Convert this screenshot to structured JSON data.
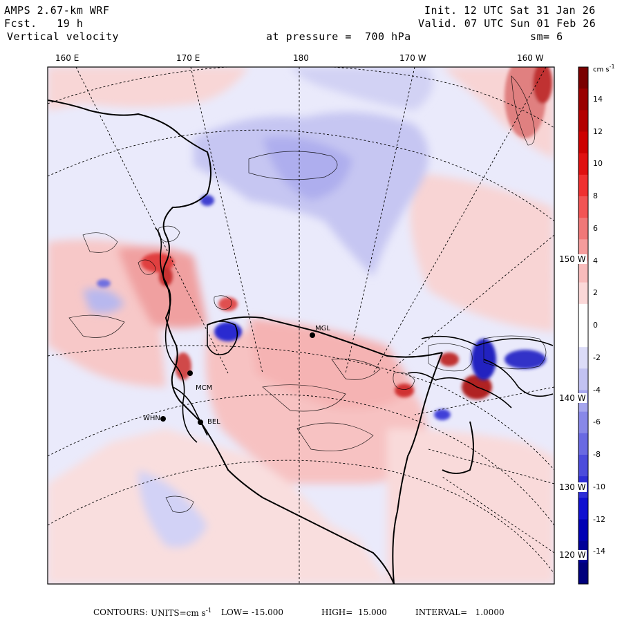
{
  "header": {
    "model": "AMPS 2.67-km WRF",
    "forecast_label": "Fcst.",
    "forecast_hours": "19 h",
    "field_name": "Vertical velocity",
    "pressure_text": "at pressure =  700 hPa",
    "init_text": "Init. 12 UTC Sat 31 Jan 26",
    "valid_text": "Valid. 07 UTC Sun 01 Feb 26",
    "smoothing_text": "sm= 6"
  },
  "longitude_labels": [
    "160 E",
    "170 E",
    "180",
    "170 W",
    "160 W"
  ],
  "latitude_labels": [
    "150 W",
    "140 W",
    "130 W",
    "120 W"
  ],
  "stations": [
    "MCM",
    "WHN",
    "BEL",
    "MGL"
  ],
  "colorbar": {
    "unit": "cm s",
    "unit_exp": "-1",
    "ticks": [
      "14",
      "12",
      "10",
      "8",
      "6",
      "4",
      "2",
      "0",
      "-2",
      "-4",
      "-6",
      "-8",
      "-10",
      "-12",
      "-14"
    ],
    "colors": [
      "#7a0000",
      "#990000",
      "#b30000",
      "#cc0000",
      "#e01010",
      "#f03030",
      "#f25454",
      "#f07878",
      "#f59c9c",
      "#f8bcbc",
      "#fbd8d8",
      "#ffffff",
      "#ffffff",
      "#dcdcf8",
      "#c2c2f2",
      "#a6a6ee",
      "#8888e8",
      "#6a6ae2",
      "#4c4cdc",
      "#2e2ed6",
      "#1010d0",
      "#0000b4",
      "#000098",
      "#00007c"
    ]
  },
  "footer": {
    "contours_label": "CONTOURS:",
    "units_label": "UNITS=cm s",
    "units_exp": "-1",
    "low_text": "LOW= -15.000",
    "high_text": "HIGH=  15.000",
    "interval_text": "INTERVAL=   1.0000"
  },
  "field_palette": {
    "land_pink": "#f8d0d0",
    "ocean_lightblue": "#e8e8fb",
    "upward_dark": "#d03030",
    "downward_dark": "#3030d0"
  }
}
